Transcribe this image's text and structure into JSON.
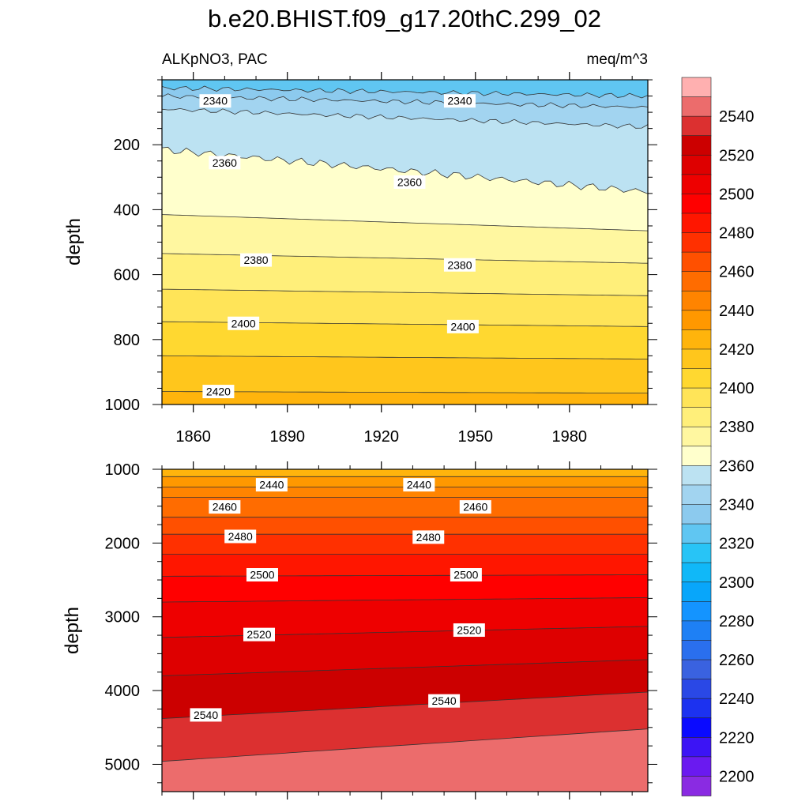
{
  "chart_data": {
    "type": "contour",
    "title": "b.e20.BHIST.f09_g17.20thC.299_02",
    "variable_label": "ALKpNO3, PAC",
    "units_label": "meq/m^3",
    "x_ticks": [
      1860,
      1890,
      1920,
      1950,
      1980
    ],
    "xlim": [
      1850,
      2005
    ],
    "colorbar": {
      "min": 2190,
      "max": 2560,
      "step": 10,
      "tick_labels": [
        2200,
        2220,
        2240,
        2260,
        2280,
        2300,
        2320,
        2340,
        2360,
        2380,
        2400,
        2420,
        2440,
        2460,
        2480,
        2500,
        2520,
        2540
      ],
      "colors": [
        "#8A2BE2",
        "#6A1AF0",
        "#3C14F5",
        "#0A0AFF",
        "#1C32F0",
        "#2A48E6",
        "#3A62E0",
        "#2A6FEE",
        "#1E80F5",
        "#1494FF",
        "#08A6FA",
        "#10B8F8",
        "#28C4F6",
        "#60C6F2",
        "#8CCAEE",
        "#A2D4F0",
        "#BCE2F2",
        "#FFFFCC",
        "#FFF7A0",
        "#FFEF7A",
        "#FFE458",
        "#FFD830",
        "#FFC61C",
        "#FFB40C",
        "#FF9800",
        "#FF8400",
        "#FF6C00",
        "#FF5000",
        "#FF3000",
        "#FF1600",
        "#FF0000",
        "#EE0000",
        "#DE0000",
        "#CC0000",
        "#DC3030",
        "#EC6C6C",
        "#FFB0B0"
      ]
    },
    "panels": [
      {
        "name": "upper",
        "ylabel": "depth",
        "y_ticks": [
          200,
          400,
          600,
          800,
          1000
        ],
        "ylim": [
          0,
          1000
        ],
        "levels": [
          {
            "value": 2330,
            "depth_start": 25,
            "depth_end": 50
          },
          {
            "value": 2340,
            "depth_start": 50,
            "depth_end": 85
          },
          {
            "value": 2350,
            "depth_start": 90,
            "depth_end": 145
          },
          {
            "value": 2360,
            "depth_start": 215,
            "depth_end": 345
          },
          {
            "value": 2370,
            "depth_start": 415,
            "depth_end": 465
          },
          {
            "value": 2380,
            "depth_start": 535,
            "depth_end": 565
          },
          {
            "value": 2390,
            "depth_start": 645,
            "depth_end": 665
          },
          {
            "value": 2400,
            "depth_start": 745,
            "depth_end": 760
          },
          {
            "value": 2410,
            "depth_start": 850,
            "depth_end": 860
          },
          {
            "value": 2420,
            "depth_start": 960,
            "depth_end": 965
          }
        ],
        "contour_labels": [
          {
            "text": "2340",
            "year": 1867,
            "depth": 65
          },
          {
            "text": "2340",
            "year": 1945,
            "depth": 65
          },
          {
            "text": "2360",
            "year": 1870,
            "depth": 255
          },
          {
            "text": "2360",
            "year": 1929,
            "depth": 315
          },
          {
            "text": "2380",
            "year": 1880,
            "depth": 555
          },
          {
            "text": "2380",
            "year": 1945,
            "depth": 570
          },
          {
            "text": "2400",
            "year": 1876,
            "depth": 750
          },
          {
            "text": "2400",
            "year": 1946,
            "depth": 760
          },
          {
            "text": "2420",
            "year": 1868,
            "depth": 960
          }
        ]
      },
      {
        "name": "lower",
        "ylabel": "depth",
        "y_ticks": [
          1000,
          2000,
          3000,
          4000,
          5000
        ],
        "ylim": [
          1000,
          5370
        ],
        "levels": [
          {
            "value": 2430,
            "depth_start": 1100,
            "depth_end": 1100
          },
          {
            "value": 2440,
            "depth_start": 1240,
            "depth_end": 1240
          },
          {
            "value": 2450,
            "depth_start": 1380,
            "depth_end": 1380
          },
          {
            "value": 2460,
            "depth_start": 1650,
            "depth_end": 1650
          },
          {
            "value": 2470,
            "depth_start": 1880,
            "depth_end": 1880
          },
          {
            "value": 2480,
            "depth_start": 2150,
            "depth_end": 2150
          },
          {
            "value": 2490,
            "depth_start": 2450,
            "depth_end": 2430
          },
          {
            "value": 2500,
            "depth_start": 2800,
            "depth_end": 2740
          },
          {
            "value": 2510,
            "depth_start": 3280,
            "depth_end": 3130
          },
          {
            "value": 2520,
            "depth_start": 3800,
            "depth_end": 3580
          },
          {
            "value": 2530,
            "depth_start": 4380,
            "depth_end": 4020
          },
          {
            "value": 2540,
            "depth_start": 4960,
            "depth_end": 4520
          }
        ],
        "contour_labels": [
          {
            "text": "2440",
            "year": 1885,
            "depth": 1210
          },
          {
            "text": "2440",
            "year": 1932,
            "depth": 1210
          },
          {
            "text": "2460",
            "year": 1870,
            "depth": 1510
          },
          {
            "text": "2460",
            "year": 1950,
            "depth": 1510
          },
          {
            "text": "2480",
            "year": 1875,
            "depth": 1910
          },
          {
            "text": "2480",
            "year": 1935,
            "depth": 1920
          },
          {
            "text": "2500",
            "year": 1882,
            "depth": 2430
          },
          {
            "text": "2500",
            "year": 1947,
            "depth": 2430
          },
          {
            "text": "2520",
            "year": 1881,
            "depth": 3240
          },
          {
            "text": "2520",
            "year": 1948,
            "depth": 3180
          },
          {
            "text": "2540",
            "year": 1864,
            "depth": 4330
          },
          {
            "text": "2540",
            "year": 1940,
            "depth": 4140
          }
        ]
      }
    ]
  }
}
